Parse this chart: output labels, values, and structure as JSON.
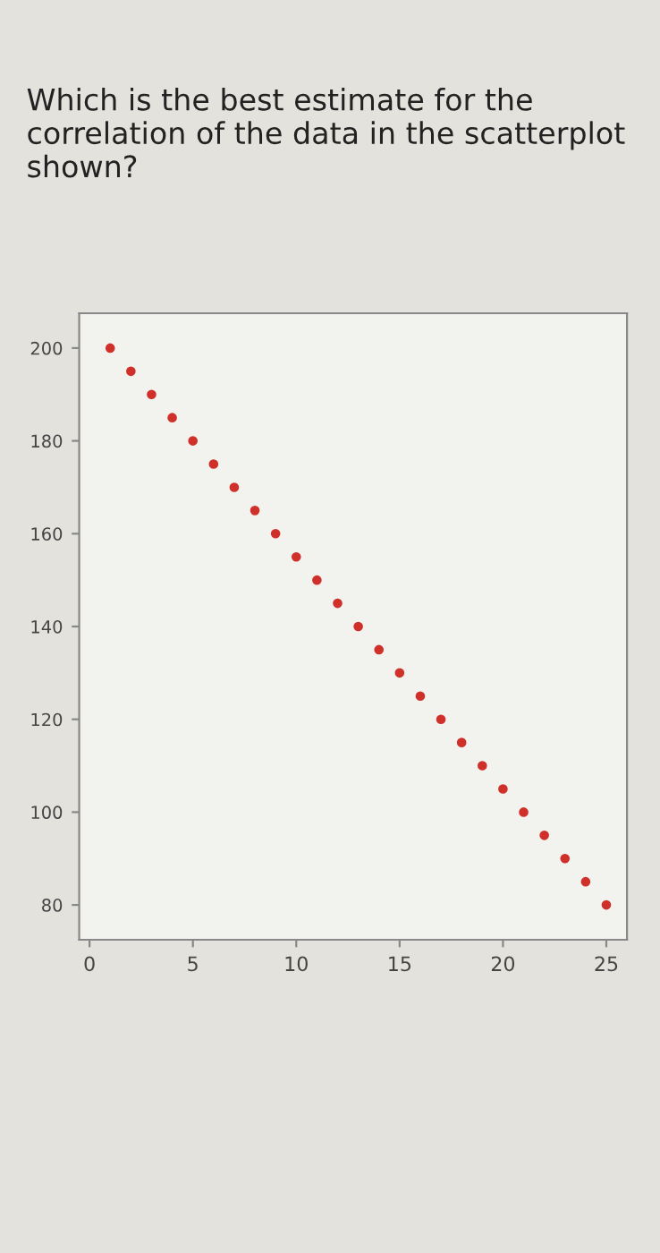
{
  "chart_data": {
    "type": "scatter",
    "title": "Which is the best estimate for the correlation of the data in the scatterplot shown?",
    "x": [
      1,
      2,
      3,
      4,
      5,
      6,
      7,
      8,
      9,
      10,
      11,
      12,
      13,
      14,
      15,
      16,
      17,
      18,
      19,
      20,
      21,
      22,
      23,
      24,
      25
    ],
    "series": [
      {
        "color": "#d0302a",
        "values": [
          200,
          195,
          190,
          185,
          180,
          175,
          170,
          165,
          160,
          155,
          150,
          145,
          140,
          135,
          130,
          125,
          120,
          115,
          110,
          105,
          100,
          95,
          90,
          85,
          80
        ]
      }
    ],
    "xlim": [
      -0.5,
      26
    ],
    "ylim": [
      72.5,
      207.5
    ],
    "xticks": [
      0,
      5,
      10,
      15,
      20,
      25
    ],
    "yticks": [
      80,
      100,
      120,
      140,
      160,
      180,
      200
    ],
    "marker": "circle",
    "grid": false
  }
}
